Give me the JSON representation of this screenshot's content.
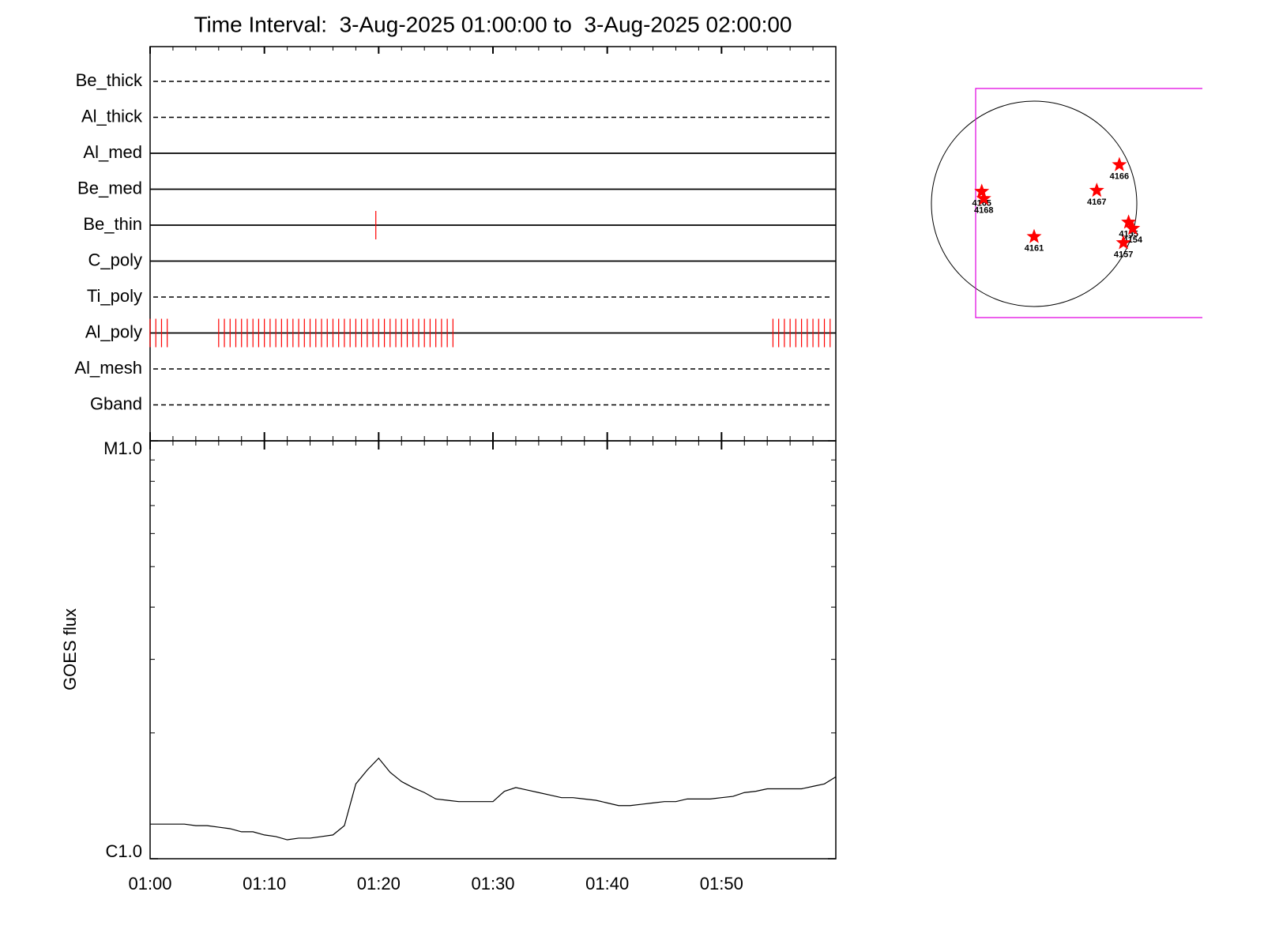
{
  "chart_data": [
    {
      "type": "events",
      "title": "Time Interval:  3-Aug-2025 01:00:00 to  3-Aug-2025 02:00:00",
      "categories": [
        "Be_thick",
        "Al_thick",
        "Al_med",
        "Be_med",
        "Be_thin",
        "C_poly",
        "Ti_poly",
        "Al_poly",
        "Al_mesh",
        "Gband"
      ],
      "line_styles": [
        "dashed",
        "dashed",
        "solid",
        "solid",
        "solid",
        "solid",
        "dashed",
        "solid",
        "dashed",
        "dashed"
      ],
      "events": [
        [],
        [],
        [],
        [],
        [
          "01:19:45"
        ],
        [],
        [],
        [
          "01:00:00",
          "01:00:30",
          "01:01:00",
          "01:01:30",
          "01:06:00",
          "01:06:30",
          "01:07:00",
          "01:07:30",
          "01:08:00",
          "01:08:30",
          "01:09:00",
          "01:09:30",
          "01:10:00",
          "01:10:30",
          "01:11:00",
          "01:11:30",
          "01:12:00",
          "01:12:30",
          "01:13:00",
          "01:13:30",
          "01:14:00",
          "01:14:30",
          "01:15:00",
          "01:15:30",
          "01:16:00",
          "01:16:30",
          "01:17:00",
          "01:17:30",
          "01:18:00",
          "01:18:30",
          "01:19:00",
          "01:19:30",
          "01:20:00",
          "01:20:30",
          "01:21:00",
          "01:21:30",
          "01:22:00",
          "01:22:30",
          "01:23:00",
          "01:23:30",
          "01:24:00",
          "01:24:30",
          "01:25:00",
          "01:25:30",
          "01:26:00",
          "01:26:30",
          "01:54:30",
          "01:55:00",
          "01:55:30",
          "01:56:00",
          "01:56:30",
          "01:57:00",
          "01:57:30",
          "01:58:00",
          "01:58:30",
          "01:59:00",
          "01:59:30"
        ],
        [],
        []
      ],
      "xlim": [
        "01:00",
        "02:00"
      ],
      "color": "#ff0000"
    },
    {
      "type": "line",
      "x": [
        "01:00",
        "01:01",
        "01:02",
        "01:03",
        "01:04",
        "01:05",
        "01:06",
        "01:07",
        "01:08",
        "01:09",
        "01:10",
        "01:11",
        "01:12",
        "01:13",
        "01:14",
        "01:15",
        "01:16",
        "01:17",
        "01:18",
        "01:19",
        "01:20",
        "01:21",
        "01:22",
        "01:23",
        "01:24",
        "01:25",
        "01:26",
        "01:27",
        "01:28",
        "01:29",
        "01:30",
        "01:31",
        "01:32",
        "01:33",
        "01:34",
        "01:35",
        "01:36",
        "01:37",
        "01:38",
        "01:39",
        "01:40",
        "01:41",
        "01:42",
        "01:43",
        "01:44",
        "01:45",
        "01:46",
        "01:47",
        "01:48",
        "01:49",
        "01:50",
        "01:51",
        "01:52",
        "01:53",
        "01:54",
        "01:55",
        "01:56",
        "01:57",
        "01:58",
        "01:59",
        "02:00"
      ],
      "values": [
        1.21e-06,
        1.21e-06,
        1.21e-06,
        1.21e-06,
        1.2e-06,
        1.2e-06,
        1.19e-06,
        1.18e-06,
        1.16e-06,
        1.16e-06,
        1.14e-06,
        1.13e-06,
        1.11e-06,
        1.12e-06,
        1.12e-06,
        1.13e-06,
        1.14e-06,
        1.2e-06,
        1.51e-06,
        1.63e-06,
        1.74e-06,
        1.61e-06,
        1.53e-06,
        1.48e-06,
        1.44e-06,
        1.39e-06,
        1.38e-06,
        1.37e-06,
        1.37e-06,
        1.37e-06,
        1.37e-06,
        1.45e-06,
        1.48e-06,
        1.46e-06,
        1.44e-06,
        1.42e-06,
        1.4e-06,
        1.4e-06,
        1.39e-06,
        1.38e-06,
        1.36e-06,
        1.34e-06,
        1.34e-06,
        1.35e-06,
        1.36e-06,
        1.37e-06,
        1.37e-06,
        1.39e-06,
        1.39e-06,
        1.39e-06,
        1.4e-06,
        1.41e-06,
        1.44e-06,
        1.45e-06,
        1.47e-06,
        1.47e-06,
        1.47e-06,
        1.47e-06,
        1.49e-06,
        1.51e-06,
        1.57e-06
      ],
      "xlim": [
        "01:00",
        "02:00"
      ],
      "xticks": [
        "01:00",
        "01:10",
        "01:20",
        "01:30",
        "01:40",
        "01:50"
      ],
      "ylim": [
        1e-06,
        1e-05
      ],
      "yticks": [
        {
          "value": 1e-06,
          "label": "C1.0"
        },
        {
          "value": 1e-05,
          "label": "M1.0"
        }
      ],
      "log": true,
      "ylabel": "GOES flux",
      "color": "#000000"
    },
    {
      "type": "scatter",
      "labels": [
        "4165",
        "4168",
        "4166",
        "4167",
        "4161",
        "4155",
        "4154",
        "4157"
      ],
      "x": [
        -0.51,
        -0.49,
        0.83,
        0.61,
        0.0,
        0.92,
        0.96,
        0.87
      ],
      "y": [
        0.12,
        0.05,
        0.38,
        0.13,
        -0.32,
        -0.18,
        -0.24,
        -0.38
      ],
      "color": "#ff0000"
    }
  ]
}
